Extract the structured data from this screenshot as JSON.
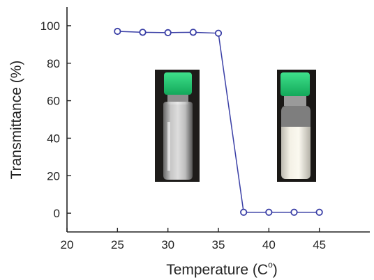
{
  "chart_data": {
    "type": "line",
    "xlabel": "Temperature (C°)",
    "xlabel_main": "Temperature (C",
    "xlabel_sup": "o",
    "xlabel_close": ")",
    "ylabel": "Transmittance (%)",
    "xlim": [
      20,
      50
    ],
    "ylim": [
      -10,
      110
    ],
    "xticks": [
      20,
      25,
      30,
      35,
      40,
      45
    ],
    "yticks": [
      0,
      20,
      40,
      60,
      80,
      100
    ],
    "grid": false,
    "series": [
      {
        "x": [
          25,
          27.5,
          30,
          32.5,
          35,
          37.5,
          40,
          42.5,
          45
        ],
        "y": [
          97,
          96.5,
          96.3,
          96.5,
          96,
          0.5,
          0.5,
          0.5,
          0.5
        ]
      }
    ],
    "insets": [
      {
        "kind": "vial-photo",
        "state": "transparent"
      },
      {
        "kind": "vial-photo",
        "state": "turbid"
      }
    ]
  },
  "colors": {
    "line": "#3a3fa6",
    "marker_edge": "#3a3fa6",
    "axis": "#222222",
    "cap": "#1fbf6a"
  }
}
